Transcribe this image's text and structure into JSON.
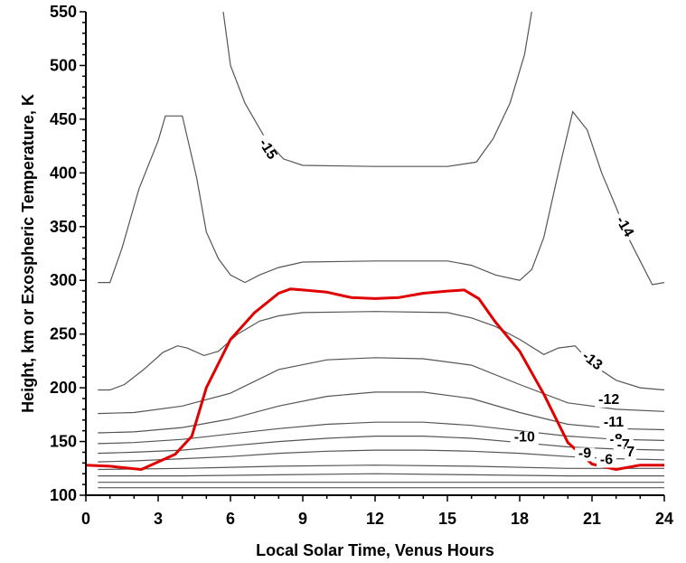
{
  "chart_data": {
    "type": "line",
    "title": "",
    "xlabel": "Local Solar Time, Venus Hours",
    "ylabel": "Height, km or Exospheric Temperature, K",
    "xlim": [
      0,
      24
    ],
    "ylim": [
      100,
      550
    ],
    "x_ticks": [
      "0",
      "3",
      "6",
      "9",
      "12",
      "15",
      "18",
      "21",
      "24"
    ],
    "y_ticks": [
      "100",
      "150",
      "200",
      "250",
      "300",
      "350",
      "400",
      "450",
      "500",
      "550"
    ],
    "grid": false,
    "colors": {
      "contour": "#555555",
      "temperature": "#e00000",
      "axis": "#000000"
    },
    "contours": [
      {
        "label": "-15",
        "x": [
          5.7,
          6.0,
          6.6,
          7.5,
          8.2,
          9.0,
          12.0,
          15.0,
          16.2,
          16.9,
          17.6,
          18.2,
          18.5
        ],
        "y": [
          550,
          500,
          465,
          430,
          413,
          407,
          406,
          406,
          410,
          432,
          465,
          510,
          550
        ]
      },
      {
        "label": "-14",
        "x": [
          0.5,
          1.0,
          1.5,
          2.2,
          3.0,
          3.3,
          4.0,
          4.6,
          5.0,
          5.5,
          6.0,
          6.6,
          7.2,
          8.0,
          9.0,
          12.0,
          15.0,
          16.0,
          17.0,
          18.0,
          18.5,
          19.0,
          19.6,
          20.2,
          20.8,
          21.4,
          22.0,
          22.5,
          23.0,
          23.5,
          24.0
        ],
        "y": [
          298,
          298,
          330,
          385,
          430,
          453,
          453,
          395,
          345,
          320,
          305,
          298,
          305,
          312,
          317,
          318,
          318,
          314,
          305,
          300,
          310,
          340,
          400,
          457,
          440,
          400,
          368,
          340,
          318,
          296,
          298
        ]
      },
      {
        "label": "-13",
        "x": [
          0.5,
          1.0,
          1.6,
          2.4,
          3.2,
          3.8,
          4.2,
          4.9,
          5.5,
          6.3,
          7.2,
          8.0,
          9.0,
          12.0,
          15.0,
          16.0,
          17.0,
          18.0,
          19.0,
          19.6,
          20.3,
          21.0,
          22.0,
          23.0,
          24.0
        ],
        "y": [
          198,
          198,
          203,
          217,
          233,
          239,
          237,
          230,
          234,
          250,
          262,
          267,
          270,
          271,
          270,
          265,
          257,
          245,
          231,
          237,
          239,
          222,
          207,
          200,
          198
        ]
      },
      {
        "label": "-12",
        "x": [
          0.5,
          2.0,
          4.0,
          6.0,
          8.0,
          10.0,
          12.0,
          14.0,
          16.0,
          18.0,
          20.0,
          22.0,
          24.0
        ],
        "y": [
          176,
          177,
          183,
          195,
          217,
          226,
          228,
          227,
          221,
          203,
          186,
          180,
          178
        ]
      },
      {
        "label": "-11",
        "x": [
          0.5,
          2.0,
          4.0,
          6.0,
          8.0,
          10.0,
          12.0,
          14.0,
          16.0,
          18.0,
          20.0,
          22.0,
          24.0
        ],
        "y": [
          158,
          159,
          163,
          171,
          183,
          192,
          196,
          196,
          190,
          177,
          166,
          162,
          161
        ]
      },
      {
        "label": "-10",
        "x": [
          0.5,
          2.0,
          4.0,
          6.0,
          8.0,
          10.0,
          12.0,
          14.0,
          16.0,
          18.0,
          20.0,
          22.0,
          24.0
        ],
        "y": [
          148,
          149,
          152,
          157,
          162,
          166,
          168,
          168,
          165,
          160,
          155,
          152,
          151
        ]
      },
      {
        "label": "-9",
        "x": [
          0.5,
          2.0,
          4.0,
          6.0,
          8.0,
          10.0,
          12.0,
          14.0,
          16.0,
          18.0,
          20.0,
          22.0,
          24.0
        ],
        "y": [
          139,
          140,
          142,
          146,
          150,
          153,
          155,
          155,
          153,
          149,
          145,
          143,
          142
        ]
      },
      {
        "label": "-8",
        "x": [
          0.5,
          2.0,
          4.0,
          6.0,
          8.0,
          10.0,
          12.0,
          14.0,
          16.0,
          18.0,
          20.0,
          22.0,
          24.0
        ],
        "y": [
          131,
          132,
          134,
          136,
          139,
          141,
          142,
          142,
          141,
          139,
          136,
          134,
          133
        ]
      },
      {
        "label": "-7",
        "x": [
          0.5,
          4.0,
          8.0,
          12.0,
          16.0,
          20.0,
          24.0
        ],
        "y": [
          124,
          125,
          127,
          128,
          127,
          125,
          125
        ]
      },
      {
        "label": "-6",
        "x": [
          0.5,
          4.0,
          8.0,
          12.0,
          16.0,
          20.0,
          24.0
        ],
        "y": [
          118,
          118,
          119,
          120,
          119,
          118,
          118
        ]
      },
      {
        "label": "",
        "x": [
          0.5,
          24.0
        ],
        "y": [
          112,
          112
        ]
      },
      {
        "label": "",
        "x": [
          0.5,
          24.0
        ],
        "y": [
          107,
          107
        ]
      }
    ],
    "temperature_curve": {
      "x": [
        0.0,
        1.0,
        2.3,
        3.0,
        3.7,
        4.4,
        5.0,
        6.0,
        7.0,
        8.0,
        8.5,
        9.0,
        10.0,
        11.0,
        12.0,
        13.0,
        14.0,
        15.0,
        15.7,
        16.3,
        17.0,
        18.0,
        19.0,
        20.0,
        21.0,
        22.0,
        23.0,
        24.0
      ],
      "y": [
        128,
        127,
        124,
        131,
        138,
        155,
        200,
        245,
        270,
        288,
        292,
        291,
        289,
        284,
        283,
        284,
        288,
        290,
        291,
        283,
        261,
        234,
        194,
        149,
        129,
        124,
        128,
        128
      ]
    },
    "contour_labels": [
      {
        "text": "-15",
        "x": 7.4,
        "y": 420,
        "angle": 58
      },
      {
        "text": "-14",
        "x": 22.2,
        "y": 348,
        "angle": 60
      },
      {
        "text": "-13",
        "x": 20.9,
        "y": 222,
        "angle": 38
      },
      {
        "text": "-12",
        "x": 21.7,
        "y": 185,
        "angle": 0
      },
      {
        "text": "-11",
        "x": 21.9,
        "y": 164,
        "angle": 0
      },
      {
        "text": "-10",
        "x": 18.2,
        "y": 150,
        "angle": 0
      },
      {
        "text": "-9",
        "x": 20.7,
        "y": 135,
        "angle": 0
      },
      {
        "text": "-8",
        "x": 22.0,
        "y": 148,
        "angle": 0
      },
      {
        "text": "-7",
        "x": 22.3,
        "y": 143,
        "angle": 0
      },
      {
        "text": "-6",
        "x": 21.6,
        "y": 129,
        "angle": 0
      },
      {
        "text": "7",
        "x": 22.6,
        "y": 136,
        "angle": 0
      }
    ]
  }
}
